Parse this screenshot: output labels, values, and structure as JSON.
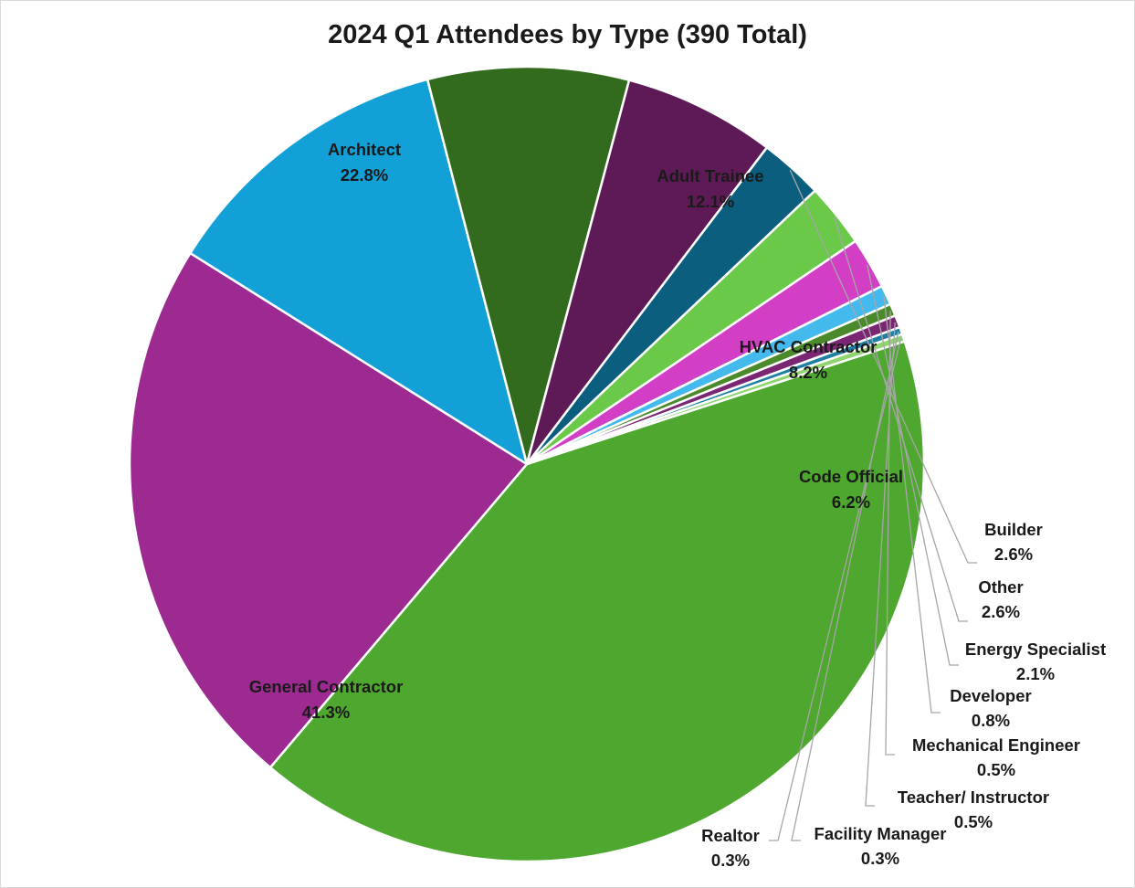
{
  "chart_data": {
    "type": "pie",
    "title": "2024 Q1 Attendees by Type (390 Total)",
    "start_angle_deg": 72,
    "colors": {
      "General Contractor": "#4ea72e",
      "Architect": "#9c2a90",
      "Adult Trainee": "#12a0d7",
      "HVAC Contractor": "#326a1e",
      "Code Official": "#5e1a56",
      "Builder": "#0b5e7e",
      "Other": "#6ac948",
      "Energy Specialist": "#d23fc4",
      "Developer": "#44b9ee",
      "Mechanical Engineer": "#4a8a2a",
      "Teacher/ Instructor": "#7a2672",
      "Facility Manager": "#1e7fa3",
      "Realtor": "#8fd46e"
    },
    "slices": [
      {
        "label": "General Contractor",
        "value": 41.3,
        "text": "41.3%"
      },
      {
        "label": "Architect",
        "value": 22.8,
        "text": "22.8%"
      },
      {
        "label": "Adult Trainee",
        "value": 12.1,
        "text": "12.1%"
      },
      {
        "label": "HVAC Contractor",
        "value": 8.2,
        "text": "8.2%"
      },
      {
        "label": "Code Official",
        "value": 6.2,
        "text": "6.2%"
      },
      {
        "label": "Builder",
        "value": 2.6,
        "text": "2.6%"
      },
      {
        "label": "Other",
        "value": 2.6,
        "text": "2.6%"
      },
      {
        "label": "Energy Specialist",
        "value": 2.1,
        "text": "2.1%"
      },
      {
        "label": "Developer",
        "value": 0.8,
        "text": "0.8%"
      },
      {
        "label": "Mechanical Engineer",
        "value": 0.5,
        "text": "0.5%"
      },
      {
        "label": "Teacher/ Instructor",
        "value": 0.5,
        "text": "0.5%"
      },
      {
        "label": "Facility Manager",
        "value": 0.3,
        "text": "0.3%"
      },
      {
        "label": "Realtor",
        "value": 0.3,
        "text": "0.3%"
      }
    ]
  }
}
